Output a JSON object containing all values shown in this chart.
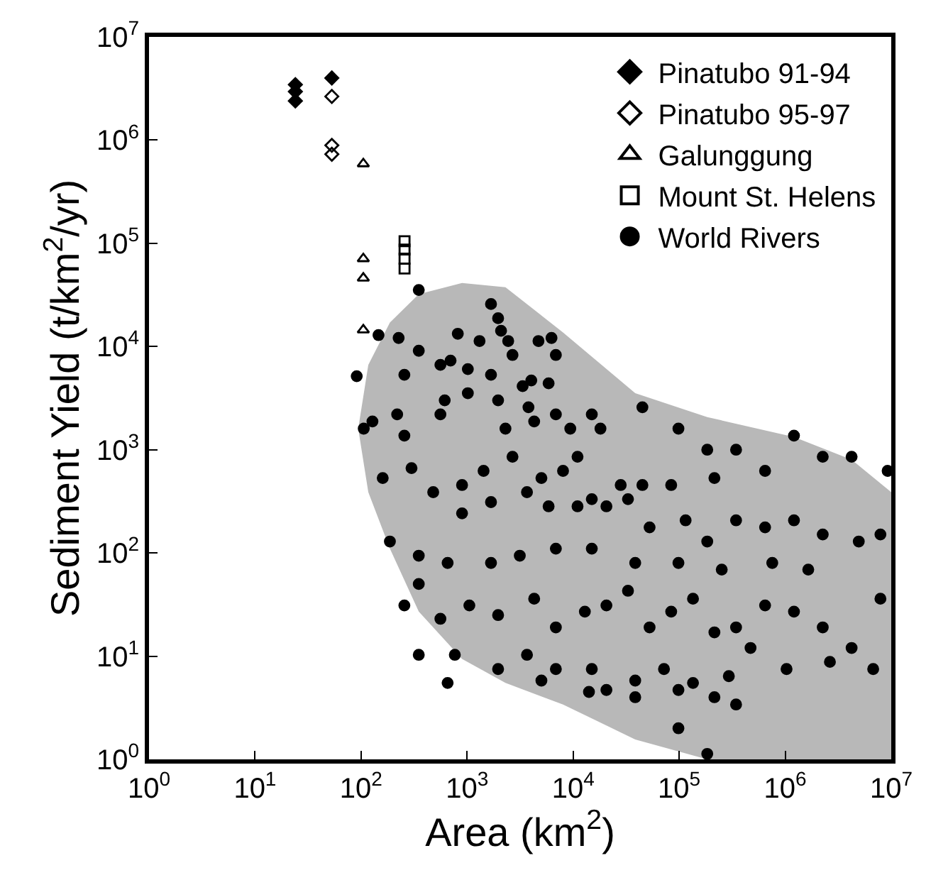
{
  "chart_data": {
    "type": "scatter",
    "xlabel": "Area (km$^{2}$)",
    "ylabel": "Sediment Yield (t/km$^{2}$/yr)",
    "log": "xy",
    "legend": "top right",
    "xlim": [
      1,
      10000000
    ],
    "ylim": [
      1,
      10000000
    ],
    "xticks": [
      {
        "value": 1,
        "label": "10$^{0}$"
      },
      {
        "value": 10,
        "label": "10$^{1}$"
      },
      {
        "value": 100,
        "label": "10$^{2}$"
      },
      {
        "value": 1000,
        "label": "10$^{3}$"
      },
      {
        "value": 10000,
        "label": "10$^{4}$"
      },
      {
        "value": 100000,
        "label": "10$^{5}$"
      },
      {
        "value": 1000000,
        "label": "10$^{6}$"
      },
      {
        "value": 10000000,
        "label": "10$^{7}$"
      }
    ],
    "yticks": [
      {
        "value": 1,
        "label": "10$^{0}$"
      },
      {
        "value": 10,
        "label": "10$^{1}$"
      },
      {
        "value": 100,
        "label": "10$^{2}$"
      },
      {
        "value": 1000,
        "label": "10$^{3}$"
      },
      {
        "value": 10000,
        "label": "10$^{4}$"
      },
      {
        "value": 100000,
        "label": "10$^{5}$"
      },
      {
        "value": 1000000,
        "label": "10$^{6}$"
      },
      {
        "value": 10000000,
        "label": "10$^{7}$"
      }
    ],
    "series": [
      {
        "type": "line",
        "color": "#b8b8b8",
        "x": [
          94,
          117,
          187,
          350,
          896,
          2300,
          8030,
          38500,
          184000,
          1210000,
          4230000,
          10000000
        ],
        "upper": [
          1600,
          6640,
          17100,
          32100,
          41300,
          37600,
          13700,
          3530,
          2070,
          1330,
          802,
          388
        ],
        "lower": [
          1600,
          388,
          110,
          27,
          9.4,
          5.5,
          3.4,
          1.56,
          1,
          1,
          1,
          1
        ],
        "values": [
          null,
          null,
          null,
          null,
          null,
          null,
          null,
          null,
          null,
          null,
          null,
          null
        ]
      },
      {
        "name": "Pinatubo 91-94",
        "color": "#000000",
        "marker": "diamond",
        "x": [
          24,
          24,
          24,
          53
        ],
        "values": [
          3450000,
          2950000,
          2400000,
          4000000
        ]
      },
      {
        "name": "Pinatubo 95-97",
        "color": "#000000",
        "marker": "diamond-open",
        "x": [
          53,
          53,
          53
        ],
        "values": [
          2650000,
          890000,
          730000
        ]
      },
      {
        "name": "Galunggung",
        "color": "#000000",
        "marker": "triangle-open",
        "x": [
          105,
          105,
          105,
          105
        ],
        "values": [
          590000,
          71000,
          46000,
          14500
        ]
      },
      {
        "name": "Mount St. Helens",
        "color": "#000000",
        "marker": "square-open",
        "x": [
          257,
          257,
          257,
          257
        ],
        "values": [
          105000,
          87000,
          71000,
          57000
        ]
      },
      {
        "name": "World Rivers",
        "color": "#000000",
        "marker": "circle",
        "x": [
          350,
          226,
          1680,
          1960,
          2090,
          2440,
          1310,
          4710,
          2680,
          6250,
          6870,
          4030,
          817,
          350,
          560,
          1016,
          146,
          91,
          256,
          698,
          106,
          128,
          219,
          256,
          560,
          615,
          1016,
          1680,
          1960,
          2300,
          3340,
          5870,
          3790,
          4290,
          6870,
          9400,
          15000,
          11000,
          18100,
          45000,
          98400,
          184000,
          344000,
          1210000,
          2260000,
          4230000,
          9250000,
          646000,
          215000,
          84100,
          45000,
          28100,
          15000,
          8030,
          5020,
          2680,
          1430,
          896,
          479,
          299,
          160,
          896,
          1680,
          3670,
          5870,
          11000,
          20600,
          32900,
          52600,
          115000,
          184000,
          344000,
          646000,
          1210000,
          2260000,
          4940000,
          7910000,
          1650000,
          755000,
          252000,
          98400,
          38500,
          15000,
          6870,
          3140,
          1680,
          655,
          350,
          187,
          256,
          350,
          560,
          1050,
          1960,
          4290,
          6870,
          12900,
          20600,
          32900,
          52600,
          84100,
          135000,
          215000,
          344000,
          646000,
          1210000,
          2260000,
          4230000,
          7910000,
          6760000,
          2640000,
          1030000,
          471000,
          294000,
          135000,
          71900,
          38500,
          20600,
          15000,
          6870,
          3670,
          1960,
          766,
          350,
          655,
          5020,
          14100,
          38500,
          98400,
          215000,
          344000,
          98400,
          184000
        ],
        "values": [
          35300,
          12100,
          25800,
          18800,
          14200,
          11300,
          11300,
          11300,
          8280,
          12100,
          8280,
          4690,
          13300,
          9100,
          6640,
          6040,
          12900,
          5160,
          5320,
          7300,
          1600,
          1880,
          2200,
          1370,
          2200,
          3010,
          3530,
          5320,
          3010,
          1600,
          4130,
          4400,
          2580,
          1880,
          2200,
          1600,
          2200,
          855,
          1600,
          2580,
          1600,
          1000,
          1000,
          1370,
          855,
          855,
          624,
          624,
          532,
          455,
          455,
          455,
          332,
          624,
          532,
          855,
          624,
          455,
          388,
          664,
          532,
          242,
          311,
          388,
          283,
          283,
          283,
          332,
          177,
          207,
          129,
          207,
          177,
          207,
          151,
          129,
          151,
          69,
          80,
          69,
          80,
          80,
          110,
          110,
          94,
          80,
          80,
          94,
          129,
          31,
          50,
          23,
          31,
          25,
          36,
          19,
          27,
          31,
          43,
          19,
          27,
          36,
          17,
          19,
          31,
          27,
          19,
          12,
          36,
          7.5,
          8.8,
          7.5,
          12,
          6.4,
          5.5,
          7.5,
          5.8,
          4.7,
          7.5,
          7.5,
          10.3,
          7.5,
          10.3,
          10.3,
          5.5,
          5.8,
          4.5,
          4.0,
          4.7,
          4.0,
          3.4,
          2.0,
          1.13
        ]
      }
    ]
  }
}
